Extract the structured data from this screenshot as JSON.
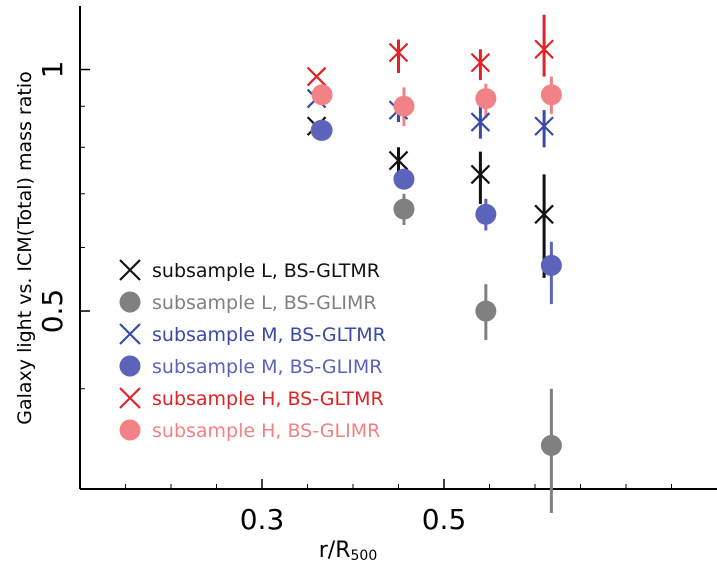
{
  "chart_data": {
    "type": "scatter",
    "xlabel": "r/R",
    "xlabel_subscript": "500",
    "ylabel": "Galaxy light vs. ICM(Total) mass ratio",
    "x_ticks": [
      0.3,
      0.5
    ],
    "x_tick_labels": [
      "0.3",
      "0.5"
    ],
    "y_ticks": [
      0.5,
      1
    ],
    "y_tick_labels": [
      "0.5",
      "1"
    ],
    "y_scale": "log",
    "xlim": [
      0.1,
      0.8
    ],
    "ylim": [
      0.3,
      1.2
    ],
    "grid": false,
    "legend_position": "lower-left",
    "series": [
      {
        "name": "subsample L, BS-GLTMR",
        "marker": "x",
        "color": "#111111",
        "points": [
          {
            "x": 0.36,
            "y": 0.85,
            "lo": 0.85,
            "hi": 0.85
          },
          {
            "x": 0.45,
            "y": 0.77,
            "lo": 0.74,
            "hi": 0.8
          },
          {
            "x": 0.54,
            "y": 0.74,
            "lo": 0.68,
            "hi": 0.79
          },
          {
            "x": 0.61,
            "y": 0.66,
            "lo": 0.55,
            "hi": 0.74
          }
        ]
      },
      {
        "name": "subsample L, BS-GLIMR",
        "marker": "o",
        "color": "#808080",
        "points": [
          {
            "x": 0.365,
            "y": 0.84,
            "lo": 0.83,
            "hi": 0.85
          },
          {
            "x": 0.456,
            "y": 0.67,
            "lo": 0.64,
            "hi": 0.7
          },
          {
            "x": 0.546,
            "y": 0.5,
            "lo": 0.46,
            "hi": 0.54
          },
          {
            "x": 0.618,
            "y": 0.34,
            "lo": 0.28,
            "hi": 0.4
          }
        ]
      },
      {
        "name": "subsample M, BS-GLTMR",
        "marker": "x",
        "color": "#3a4aa8",
        "points": [
          {
            "x": 0.36,
            "y": 0.92,
            "lo": 0.92,
            "hi": 0.92
          },
          {
            "x": 0.45,
            "y": 0.89,
            "lo": 0.86,
            "hi": 0.92
          },
          {
            "x": 0.54,
            "y": 0.86,
            "lo": 0.82,
            "hi": 0.9
          },
          {
            "x": 0.61,
            "y": 0.85,
            "lo": 0.8,
            "hi": 0.89
          }
        ]
      },
      {
        "name": "subsample M, BS-GLIMR",
        "marker": "o",
        "color": "#5b63bb",
        "points": [
          {
            "x": 0.366,
            "y": 0.84,
            "lo": 0.83,
            "hi": 0.85
          },
          {
            "x": 0.456,
            "y": 0.73,
            "lo": 0.71,
            "hi": 0.75
          },
          {
            "x": 0.546,
            "y": 0.66,
            "lo": 0.63,
            "hi": 0.69
          },
          {
            "x": 0.618,
            "y": 0.57,
            "lo": 0.51,
            "hi": 0.61
          }
        ]
      },
      {
        "name": "subsample H, BS-GLTMR",
        "marker": "x",
        "color": "#e32227",
        "points": [
          {
            "x": 0.36,
            "y": 0.98,
            "lo": 0.98,
            "hi": 0.98
          },
          {
            "x": 0.45,
            "y": 1.05,
            "lo": 0.99,
            "hi": 1.09
          },
          {
            "x": 0.54,
            "y": 1.02,
            "lo": 0.97,
            "hi": 1.06
          },
          {
            "x": 0.61,
            "y": 1.06,
            "lo": 0.98,
            "hi": 1.17
          }
        ]
      },
      {
        "name": "subsample H, BS-GLIMR",
        "marker": "o",
        "color": "#f18285",
        "points": [
          {
            "x": 0.366,
            "y": 0.93,
            "lo": 0.92,
            "hi": 0.94
          },
          {
            "x": 0.456,
            "y": 0.9,
            "lo": 0.85,
            "hi": 0.95
          },
          {
            "x": 0.546,
            "y": 0.92,
            "lo": 0.87,
            "hi": 0.96
          },
          {
            "x": 0.618,
            "y": 0.93,
            "lo": 0.88,
            "hi": 0.98
          }
        ]
      }
    ]
  }
}
